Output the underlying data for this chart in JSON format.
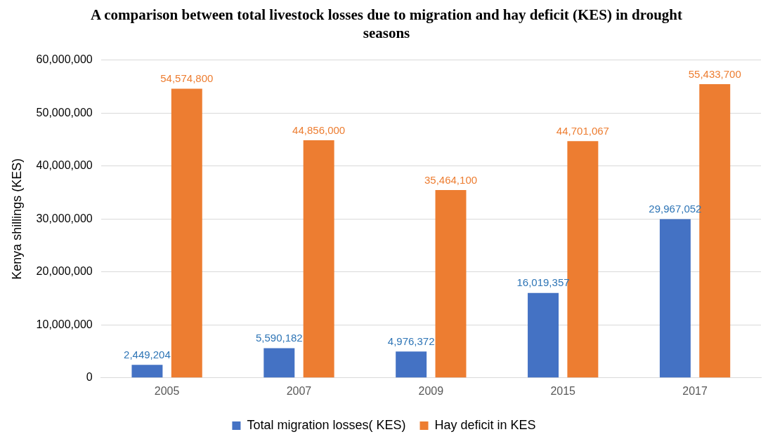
{
  "chart_data": {
    "type": "bar",
    "title": "A comparison between total livestock losses due to migration and hay deficit (KES) in drought seasons",
    "ylabel": "Kenya shillings (KES)",
    "categories": [
      "2005",
      "2007",
      "2009",
      "2015",
      "2017"
    ],
    "series": [
      {
        "name": "Total migration losses( KES)",
        "color": "#4472c4",
        "values": [
          2449204,
          5590182,
          4976372,
          16019357,
          29967052
        ],
        "value_labels": [
          "2,449,204",
          "5,590,182",
          "4,976,372",
          "16,019,357",
          "29,967,052"
        ]
      },
      {
        "name": "Hay deficit in KES",
        "color": "#ed7d31",
        "values": [
          54574800,
          44856000,
          35464100,
          44701067,
          55433700
        ],
        "value_labels": [
          "54,574,800",
          "44,856,000",
          "35,464,100",
          "44,701,067",
          "55,433,700"
        ]
      }
    ],
    "ylim": [
      0,
      60000000
    ],
    "yticks": [
      {
        "value": 0,
        "label": "0"
      },
      {
        "value": 10000000,
        "label": "10,000,000"
      },
      {
        "value": 20000000,
        "label": "20,000,000"
      },
      {
        "value": 30000000,
        "label": "30,000,000"
      },
      {
        "value": 40000000,
        "label": "40,000,000"
      },
      {
        "value": 50000000,
        "label": "50,000,000"
      },
      {
        "value": 60000000,
        "label": "60,000,000"
      }
    ],
    "grid": "y",
    "legend": "bottom"
  }
}
